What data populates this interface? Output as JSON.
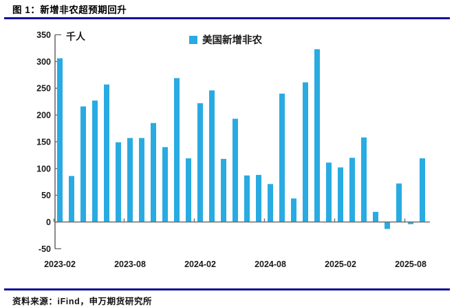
{
  "figure": {
    "title": "图 1：新增非农超预期回升",
    "source_label": "资料来源：iFind，申万期货研究所"
  },
  "colors": {
    "bar": "#29ABE2",
    "rule": "#0D0D99",
    "axis": "#6E6E6E",
    "text": "#1A1A1A"
  },
  "chart_data": {
    "type": "bar",
    "title": "图 1：新增非农超预期回升",
    "unit_label": "千人",
    "legend": [
      "美国新增非农"
    ],
    "legend_position": "top-center",
    "grid": false,
    "ylim": [
      -50,
      350
    ],
    "ytick_interval": 50,
    "yticks": [
      350,
      300,
      250,
      200,
      150,
      100,
      50,
      0,
      -50
    ],
    "xtick_labels": [
      "2023-02",
      "2023-08",
      "2024-02",
      "2024-08",
      "2025-02",
      "2025-08"
    ],
    "categories": [
      "2023-02",
      "2023-03",
      "2023-04",
      "2023-05",
      "2023-06",
      "2023-07",
      "2023-08",
      "2023-09",
      "2023-10",
      "2023-11",
      "2023-12",
      "2024-01",
      "2024-02",
      "2024-03",
      "2024-04",
      "2024-05",
      "2024-06",
      "2024-07",
      "2024-08",
      "2024-09",
      "2024-10",
      "2024-11",
      "2024-12",
      "2025-01",
      "2025-02",
      "2025-03",
      "2025-04",
      "2025-05",
      "2025-06",
      "2025-07",
      "2025-08",
      "2025-09"
    ],
    "values": [
      306,
      86,
      216,
      227,
      257,
      149,
      157,
      157,
      185,
      140,
      269,
      119,
      222,
      246,
      118,
      193,
      87,
      88,
      71,
      240,
      44,
      261,
      323,
      111,
      102,
      120,
      158,
      19,
      -13,
      72,
      -4,
      119
    ]
  }
}
